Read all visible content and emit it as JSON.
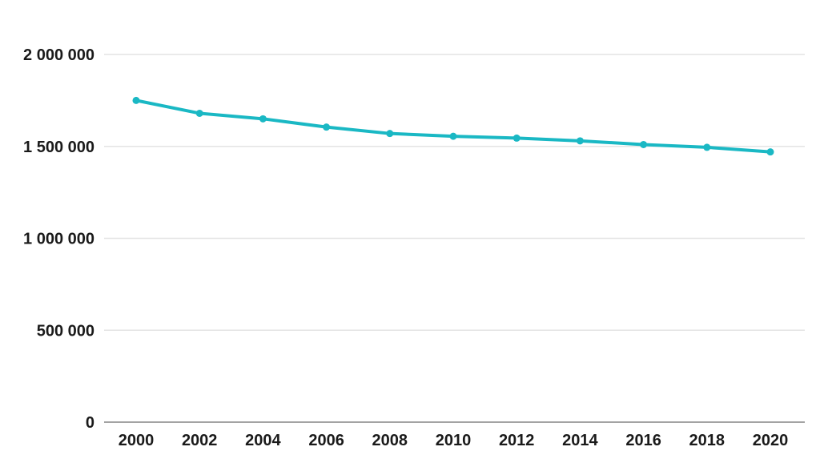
{
  "chart_data": {
    "type": "line",
    "title": "",
    "xlabel": "",
    "ylabel": "",
    "categories": [
      "2000",
      "2002",
      "2004",
      "2006",
      "2008",
      "2010",
      "2012",
      "2014",
      "2016",
      "2018",
      "2020"
    ],
    "series": [
      {
        "name": "value",
        "values": [
          1750000,
          1680000,
          1650000,
          1605000,
          1570000,
          1555000,
          1545000,
          1530000,
          1510000,
          1495000,
          1470000
        ],
        "color": "#1ab8c4"
      }
    ],
    "y_ticks": [
      {
        "value": 0,
        "label": "0"
      },
      {
        "value": 500000,
        "label": "500 000"
      },
      {
        "value": 1000000,
        "label": "1 000 000"
      },
      {
        "value": 1500000,
        "label": "1 500 000"
      },
      {
        "value": 2000000,
        "label": "2 000 000"
      }
    ],
    "ylim": [
      0,
      2000000
    ],
    "grid": true,
    "legend": false,
    "marker": "circle",
    "colors": {
      "line": "#1ab8c4",
      "gridline": "#e3e3e3",
      "zero_axis": "#a3a3a3",
      "tick_text": "#1a1a1a",
      "background": "#ffffff"
    }
  }
}
